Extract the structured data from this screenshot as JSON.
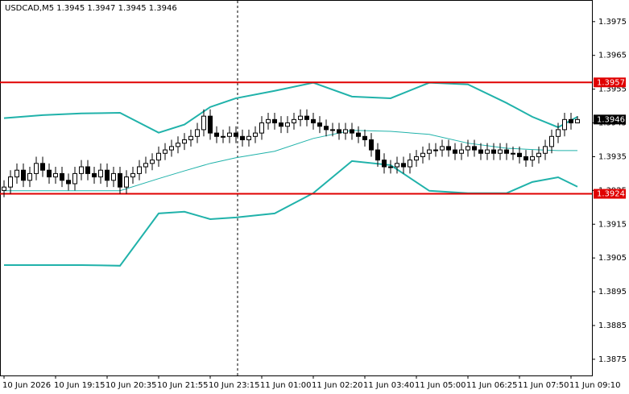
{
  "chart_data": {
    "type": "candlestick",
    "title": "USDCAD,M5  1.3945 1.3947 1.3945 1.3946",
    "open": [
      1.3925,
      1.3926,
      1.3929,
      1.3931,
      1.3928,
      1.393,
      1.3933,
      1.3931,
      1.3929,
      1.393,
      1.3928,
      1.3927,
      1.393,
      1.3932,
      1.393,
      1.3929,
      1.3931,
      1.3928,
      1.393,
      1.3926,
      1.3929,
      1.393,
      1.3932,
      1.3933,
      1.3934,
      1.3936,
      1.3937,
      1.3938,
      1.3939,
      1.394,
      1.3941,
      1.3943,
      1.3947,
      1.3942,
      1.3941,
      1.3941,
      1.3942,
      1.3941,
      1.394,
      1.3941,
      1.3942,
      1.3945,
      1.3946,
      1.3945,
      1.3944,
      1.3945,
      1.3946,
      1.3947,
      1.3946,
      1.3945,
      1.3944,
      1.3943,
      1.3943,
      1.3942,
      1.3943,
      1.3942,
      1.3941,
      1.394,
      1.3937,
      1.3934,
      1.3932,
      1.3932,
      1.3933,
      1.3932,
      1.3934,
      1.3935,
      1.3936,
      1.3937,
      1.3937,
      1.3938,
      1.3937,
      1.3936,
      1.3937,
      1.3938,
      1.3937,
      1.3936,
      1.3937,
      1.3936,
      1.3937,
      1.3936,
      1.3936,
      1.3935,
      1.3934,
      1.3935,
      1.3936,
      1.3938,
      1.3941,
      1.3943,
      1.3946,
      1.3945
    ],
    "high": [
      1.3928,
      1.3931,
      1.3933,
      1.3933,
      1.3932,
      1.3935,
      1.3935,
      1.3933,
      1.3932,
      1.3932,
      1.393,
      1.3932,
      1.3934,
      1.3934,
      1.3932,
      1.3933,
      1.3933,
      1.3932,
      1.3932,
      1.3931,
      1.3932,
      1.3934,
      1.3935,
      1.3936,
      1.3938,
      1.3939,
      1.394,
      1.3941,
      1.3942,
      1.3943,
      1.3945,
      1.3949,
      1.3949,
      1.3944,
      1.3943,
      1.3944,
      1.3944,
      1.3943,
      1.3943,
      1.3944,
      1.3947,
      1.3948,
      1.3948,
      1.3947,
      1.3947,
      1.3948,
      1.3949,
      1.3949,
      1.3948,
      1.3947,
      1.3946,
      1.3945,
      1.3945,
      1.3945,
      1.3945,
      1.3944,
      1.3943,
      1.3942,
      1.3939,
      1.3936,
      1.3934,
      1.3935,
      1.3935,
      1.3936,
      1.3937,
      1.3938,
      1.3939,
      1.3939,
      1.394,
      1.394,
      1.3939,
      1.3939,
      1.394,
      1.394,
      1.3939,
      1.3939,
      1.3939,
      1.3939,
      1.3939,
      1.3938,
      1.3938,
      1.3937,
      1.3937,
      1.3938,
      1.394,
      1.3943,
      1.3945,
      1.3948,
      1.3948,
      1.3947
    ],
    "low": [
      1.3923,
      1.3924,
      1.3927,
      1.3926,
      1.3926,
      1.3928,
      1.3929,
      1.3927,
      1.3927,
      1.3926,
      1.3925,
      1.3925,
      1.3928,
      1.3928,
      1.3927,
      1.3927,
      1.3926,
      1.3926,
      1.3924,
      1.3924,
      1.3927,
      1.3928,
      1.393,
      1.3931,
      1.3932,
      1.3934,
      1.3935,
      1.3936,
      1.3937,
      1.3938,
      1.3939,
      1.3941,
      1.394,
      1.3939,
      1.3939,
      1.3939,
      1.3939,
      1.3938,
      1.3938,
      1.3939,
      1.394,
      1.3943,
      1.3943,
      1.3942,
      1.3942,
      1.3943,
      1.3944,
      1.3944,
      1.3943,
      1.3942,
      1.3941,
      1.3941,
      1.394,
      1.394,
      1.394,
      1.3939,
      1.3938,
      1.3935,
      1.3932,
      1.393,
      1.393,
      1.393,
      1.393,
      1.393,
      1.3932,
      1.3933,
      1.3934,
      1.3935,
      1.3935,
      1.3935,
      1.3934,
      1.3934,
      1.3935,
      1.3935,
      1.3934,
      1.3934,
      1.3934,
      1.3934,
      1.3934,
      1.3934,
      1.3933,
      1.3932,
      1.3932,
      1.3933,
      1.3934,
      1.3936,
      1.3939,
      1.3941,
      1.3943,
      1.3945
    ],
    "close": [
      1.3926,
      1.3929,
      1.3931,
      1.3928,
      1.393,
      1.3933,
      1.3931,
      1.3929,
      1.393,
      1.3928,
      1.3927,
      1.393,
      1.3932,
      1.393,
      1.3929,
      1.3931,
      1.3928,
      1.393,
      1.3926,
      1.3929,
      1.393,
      1.3932,
      1.3933,
      1.3934,
      1.3936,
      1.3937,
      1.3938,
      1.3939,
      1.394,
      1.3941,
      1.3943,
      1.3947,
      1.3942,
      1.3941,
      1.3941,
      1.3942,
      1.3941,
      1.394,
      1.3941,
      1.3942,
      1.3945,
      1.3946,
      1.3945,
      1.3944,
      1.3945,
      1.3946,
      1.3947,
      1.3946,
      1.3945,
      1.3944,
      1.3943,
      1.3943,
      1.3942,
      1.3943,
      1.3942,
      1.3941,
      1.394,
      1.3937,
      1.3934,
      1.3932,
      1.3932,
      1.3933,
      1.3932,
      1.3934,
      1.3935,
      1.3936,
      1.3937,
      1.3937,
      1.3938,
      1.3937,
      1.3936,
      1.3937,
      1.3938,
      1.3937,
      1.3936,
      1.3937,
      1.3936,
      1.3937,
      1.3936,
      1.3936,
      1.3935,
      1.3934,
      1.3935,
      1.3936,
      1.3938,
      1.3941,
      1.3943,
      1.3946,
      1.3945,
      1.3946
    ],
    "overlays": [
      {
        "color": "#20b2aa",
        "width": 2,
        "x": [
          0,
          6,
          12,
          18,
          24,
          28,
          32,
          36,
          42,
          48,
          54,
          60,
          66,
          72,
          78,
          82,
          86,
          89
        ],
        "values": [
          1.39464,
          1.39473,
          1.39478,
          1.3948,
          1.39421,
          1.39445,
          1.39497,
          1.39523,
          1.39545,
          1.39569,
          1.39528,
          1.39523,
          1.39569,
          1.39564,
          1.39509,
          1.39468,
          1.39437,
          1.39468
        ]
      },
      {
        "color": "#20b2aa",
        "width": 1,
        "x": [
          0,
          6,
          12,
          18,
          24,
          28,
          32,
          36,
          42,
          48,
          54,
          60,
          66,
          72,
          78,
          82,
          86,
          89
        ],
        "values": [
          1.39249,
          1.39249,
          1.39249,
          1.39249,
          1.39285,
          1.39308,
          1.3933,
          1.39347,
          1.39366,
          1.39404,
          1.39428,
          1.39425,
          1.39416,
          1.3939,
          1.39375,
          1.39371,
          1.39368,
          1.39368
        ]
      },
      {
        "color": "#20b2aa",
        "width": 2,
        "x": [
          0,
          6,
          12,
          18,
          24,
          28,
          32,
          36,
          42,
          48,
          54,
          60,
          66,
          72,
          78,
          82,
          86,
          89
        ],
        "values": [
          1.39029,
          1.39029,
          1.39029,
          1.39027,
          1.39182,
          1.39187,
          1.39165,
          1.3917,
          1.39182,
          1.39242,
          1.39337,
          1.39325,
          1.39249,
          1.39242,
          1.39242,
          1.39275,
          1.39289,
          1.39261
        ]
      }
    ],
    "levels": [
      {
        "value": 1.3957,
        "color": "#e00000"
      },
      {
        "value": 1.3924,
        "color": "#e00000"
      }
    ],
    "current": {
      "value": 1.3946,
      "color": "#000000"
    },
    "xlim": [
      -0.625,
      91.25
    ],
    "xticks": [
      {
        "value": 0,
        "label": "10 Jun 2026"
      },
      {
        "value": 8,
        "label": "10 Jun 19:15"
      },
      {
        "value": 16,
        "label": "10 Jun 20:35"
      },
      {
        "value": 24,
        "label": "10 Jun 21:55"
      },
      {
        "value": 32,
        "label": "10 Jun 23:15"
      },
      {
        "value": 40,
        "label": "11 Jun 01:00"
      },
      {
        "value": 48,
        "label": "11 Jun 02:20"
      },
      {
        "value": 56,
        "label": "11 Jun 03:40"
      },
      {
        "value": 64,
        "label": "11 Jun 05:00"
      },
      {
        "value": 72,
        "label": "11 Jun 06:25"
      },
      {
        "value": 80,
        "label": "11 Jun 07:50"
      },
      {
        "value": 88,
        "label": "11 Jun 09:10"
      }
    ],
    "ylim": [
      1.38702,
      1.39814
    ],
    "yticks": [
      1.3975,
      1.3965,
      1.3955,
      1.3945,
      1.3935,
      1.3925,
      1.3915,
      1.3905,
      1.3895,
      1.3885,
      1.3875
    ]
  }
}
